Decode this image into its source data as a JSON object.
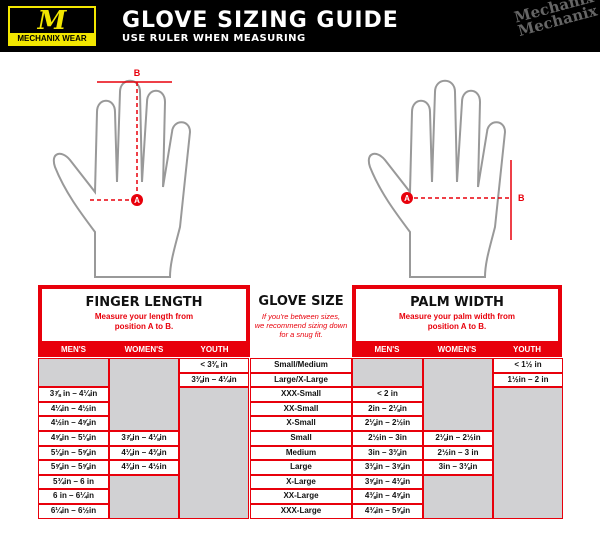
{
  "header": {
    "logo_text": "MECHANIX WEAR",
    "title": "GLOVE SIZING GUIDE",
    "subtitle": "USE RULER WHEN MEASURING",
    "watermark": "Mechanix"
  },
  "markers": {
    "a": "A",
    "b": "B"
  },
  "finger": {
    "title": "FINGER LENGTH",
    "desc1": "Measure your length from",
    "desc2": "position A to B.",
    "cols": [
      "MEN'S",
      "WOMEN'S",
      "YOUTH"
    ],
    "youth": [
      "< 3⅜ in",
      "3⅜in – 4¼in"
    ],
    "mens": [
      "3⅞ in – 4¼in",
      "4¼in – 4½in",
      "4½in – 4⅝in",
      "4⅝in – 5⅛in",
      "5⅛in – 5⅝in",
      "5⅝in – 5⅝in",
      "5¾in – 6 in",
      "6 in – 6¼in",
      "6¼in – 6½in"
    ],
    "womens": [
      "3⅞in – 4⅛in",
      "4⅛in – 4⅜in",
      "4⅜in – 4½in"
    ]
  },
  "glove": {
    "title": "GLOVE SIZE",
    "note1": "If you're between sizes,",
    "note2": "we recommend sizing down",
    "note3": "for a snug fit.",
    "sizes": [
      "Small/Medium",
      "Large/X-Large",
      "XXX-Small",
      "XX-Small",
      "X-Small",
      "Small",
      "Medium",
      "Large",
      "X-Large",
      "XX-Large",
      "XXX-Large"
    ]
  },
  "palm": {
    "title": "PALM WIDTH",
    "desc1": "Measure your palm width from",
    "desc2": "position A to B.",
    "cols": [
      "MEN'S",
      "WOMEN'S",
      "YOUTH"
    ],
    "youth": [
      "< 1½ in",
      "1½in – 2 in"
    ],
    "mens": [
      "< 2 in",
      "2in – 2⅛in",
      "2⅛in – 2½in",
      "2½in – 3in",
      "3in – 3⅜in",
      "3⅜in – 3⅝in",
      "3⅝in – 4⅜in",
      "4⅜in – 4⅝in",
      "4¾in – 5⅝in"
    ],
    "womens": [
      "2⅛in – 2½in",
      "2½in – 3 in",
      "3in – 3⅜in"
    ]
  },
  "colors": {
    "red": "#e8000b",
    "gray": "#d1d1d3",
    "logo_yellow": "#f2e600"
  }
}
